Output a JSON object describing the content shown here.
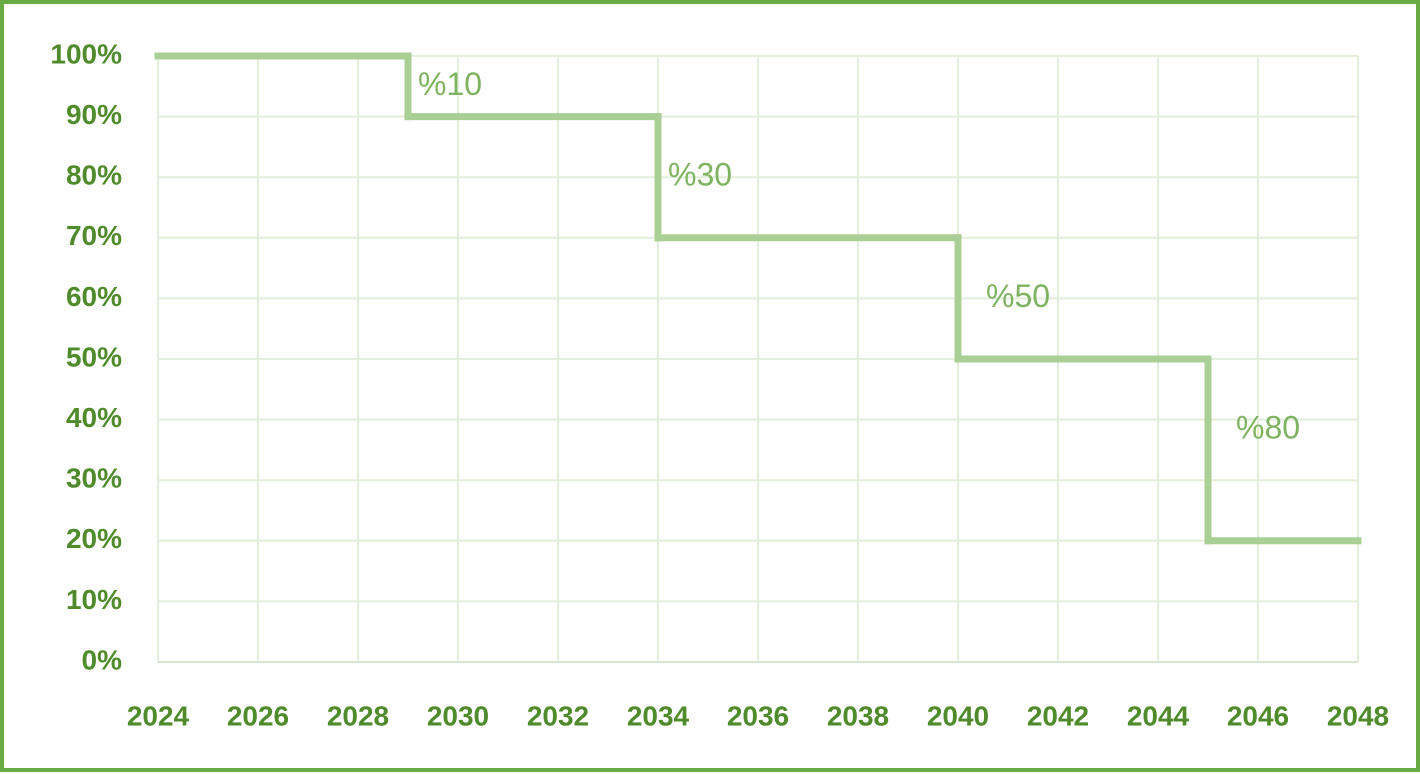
{
  "chart_data": {
    "type": "step",
    "x": [
      2024,
      2029,
      2034,
      2040,
      2045
    ],
    "values": [
      100,
      90,
      70,
      50,
      20
    ],
    "color": "#a9cf94",
    "annotations": [
      "%10",
      "%30",
      "%50",
      "%80"
    ],
    "xlim": [
      2024,
      2048
    ],
    "xticks": [
      2024,
      2026,
      2028,
      2030,
      2032,
      2034,
      2036,
      2038,
      2040,
      2042,
      2044,
      2046,
      2048
    ],
    "ylim": [
      0,
      100
    ],
    "yticks": [
      {
        "value": 0,
        "label": "0%"
      },
      {
        "value": 10,
        "label": "10%"
      },
      {
        "value": 20,
        "label": "20%"
      },
      {
        "value": 30,
        "label": "30%"
      },
      {
        "value": 40,
        "label": "40%"
      },
      {
        "value": 50,
        "label": "50%"
      },
      {
        "value": 60,
        "label": "60%"
      },
      {
        "value": 70,
        "label": "70%"
      },
      {
        "value": 80,
        "label": "80%"
      },
      {
        "value": 90,
        "label": "90%"
      },
      {
        "value": 100,
        "label": "100%"
      }
    ],
    "grid": true
  }
}
